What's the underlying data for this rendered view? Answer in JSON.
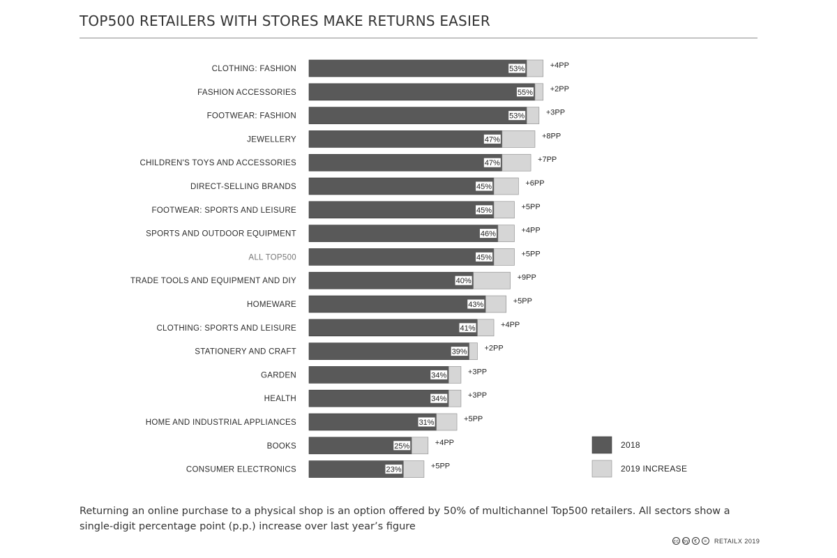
{
  "title": "TOP500 RETAILERS WITH STORES MAKE RETURNS EASIER",
  "caption": "Returning an online purchase to a physical shop is an option offered by 50% of multichannel Top500 retailers. All sectors show a single-digit percentage point (p.p.) increase over last year’s figure",
  "credit": "RETAILX 2019",
  "credit_icons": [
    "cc",
    "by",
    "€",
    "="
  ],
  "colors": {
    "base": "#595959",
    "increase": "#d6d6d6",
    "highlight_label": "#777777"
  },
  "chart_data": {
    "type": "bar",
    "orientation": "horizontal",
    "stacked": true,
    "categories": [
      "CLOTHING: FASHION",
      "FASHION ACCESSORIES",
      "FOOTWEAR: FASHION",
      "JEWELLERY",
      "CHILDREN'S TOYS AND ACCESSORIES",
      "DIRECT-SELLING BRANDS",
      "FOOTWEAR: SPORTS AND LEISURE",
      "SPORTS AND OUTDOOR EQUIPMENT",
      "ALL TOP500",
      "TRADE TOOLS AND EQUIPMENT AND DIY",
      "HOMEWARE",
      "CLOTHING: SPORTS AND LEISURE",
      "STATIONERY AND CRAFT",
      "GARDEN",
      "HEALTH",
      "HOME AND INDUSTRIAL APPLIANCES",
      "BOOKS",
      "CONSUMER ELECTRONICS"
    ],
    "highlight_category": "ALL TOP500",
    "series": [
      {
        "name": "2018",
        "values": [
          53,
          55,
          53,
          47,
          47,
          45,
          45,
          46,
          45,
          40,
          43,
          41,
          39,
          34,
          34,
          31,
          25,
          23
        ],
        "labels": [
          "53%",
          "55%",
          "53%",
          "47%",
          "47%",
          "45%",
          "45%",
          "46%",
          "45%",
          "40%",
          "43%",
          "41%",
          "39%",
          "34%",
          "34%",
          "31%",
          "25%",
          "23%"
        ]
      },
      {
        "name": "2019 INCREASE",
        "values": [
          4,
          2,
          3,
          8,
          7,
          6,
          5,
          4,
          5,
          9,
          5,
          4,
          2,
          3,
          3,
          5,
          4,
          5
        ],
        "labels": [
          "+4PP",
          "+2PP",
          "+3PP",
          "+8PP",
          "+7PP",
          "+6PP",
          "+5PP",
          "+4PP",
          "+5PP",
          "+9PP",
          "+5PP",
          "+4PP",
          "+2PP",
          "+3PP",
          "+3PP",
          "+5PP",
          "+4PP",
          "+5PP"
        ]
      }
    ],
    "legend_position": "bottom-right",
    "grid": false
  }
}
